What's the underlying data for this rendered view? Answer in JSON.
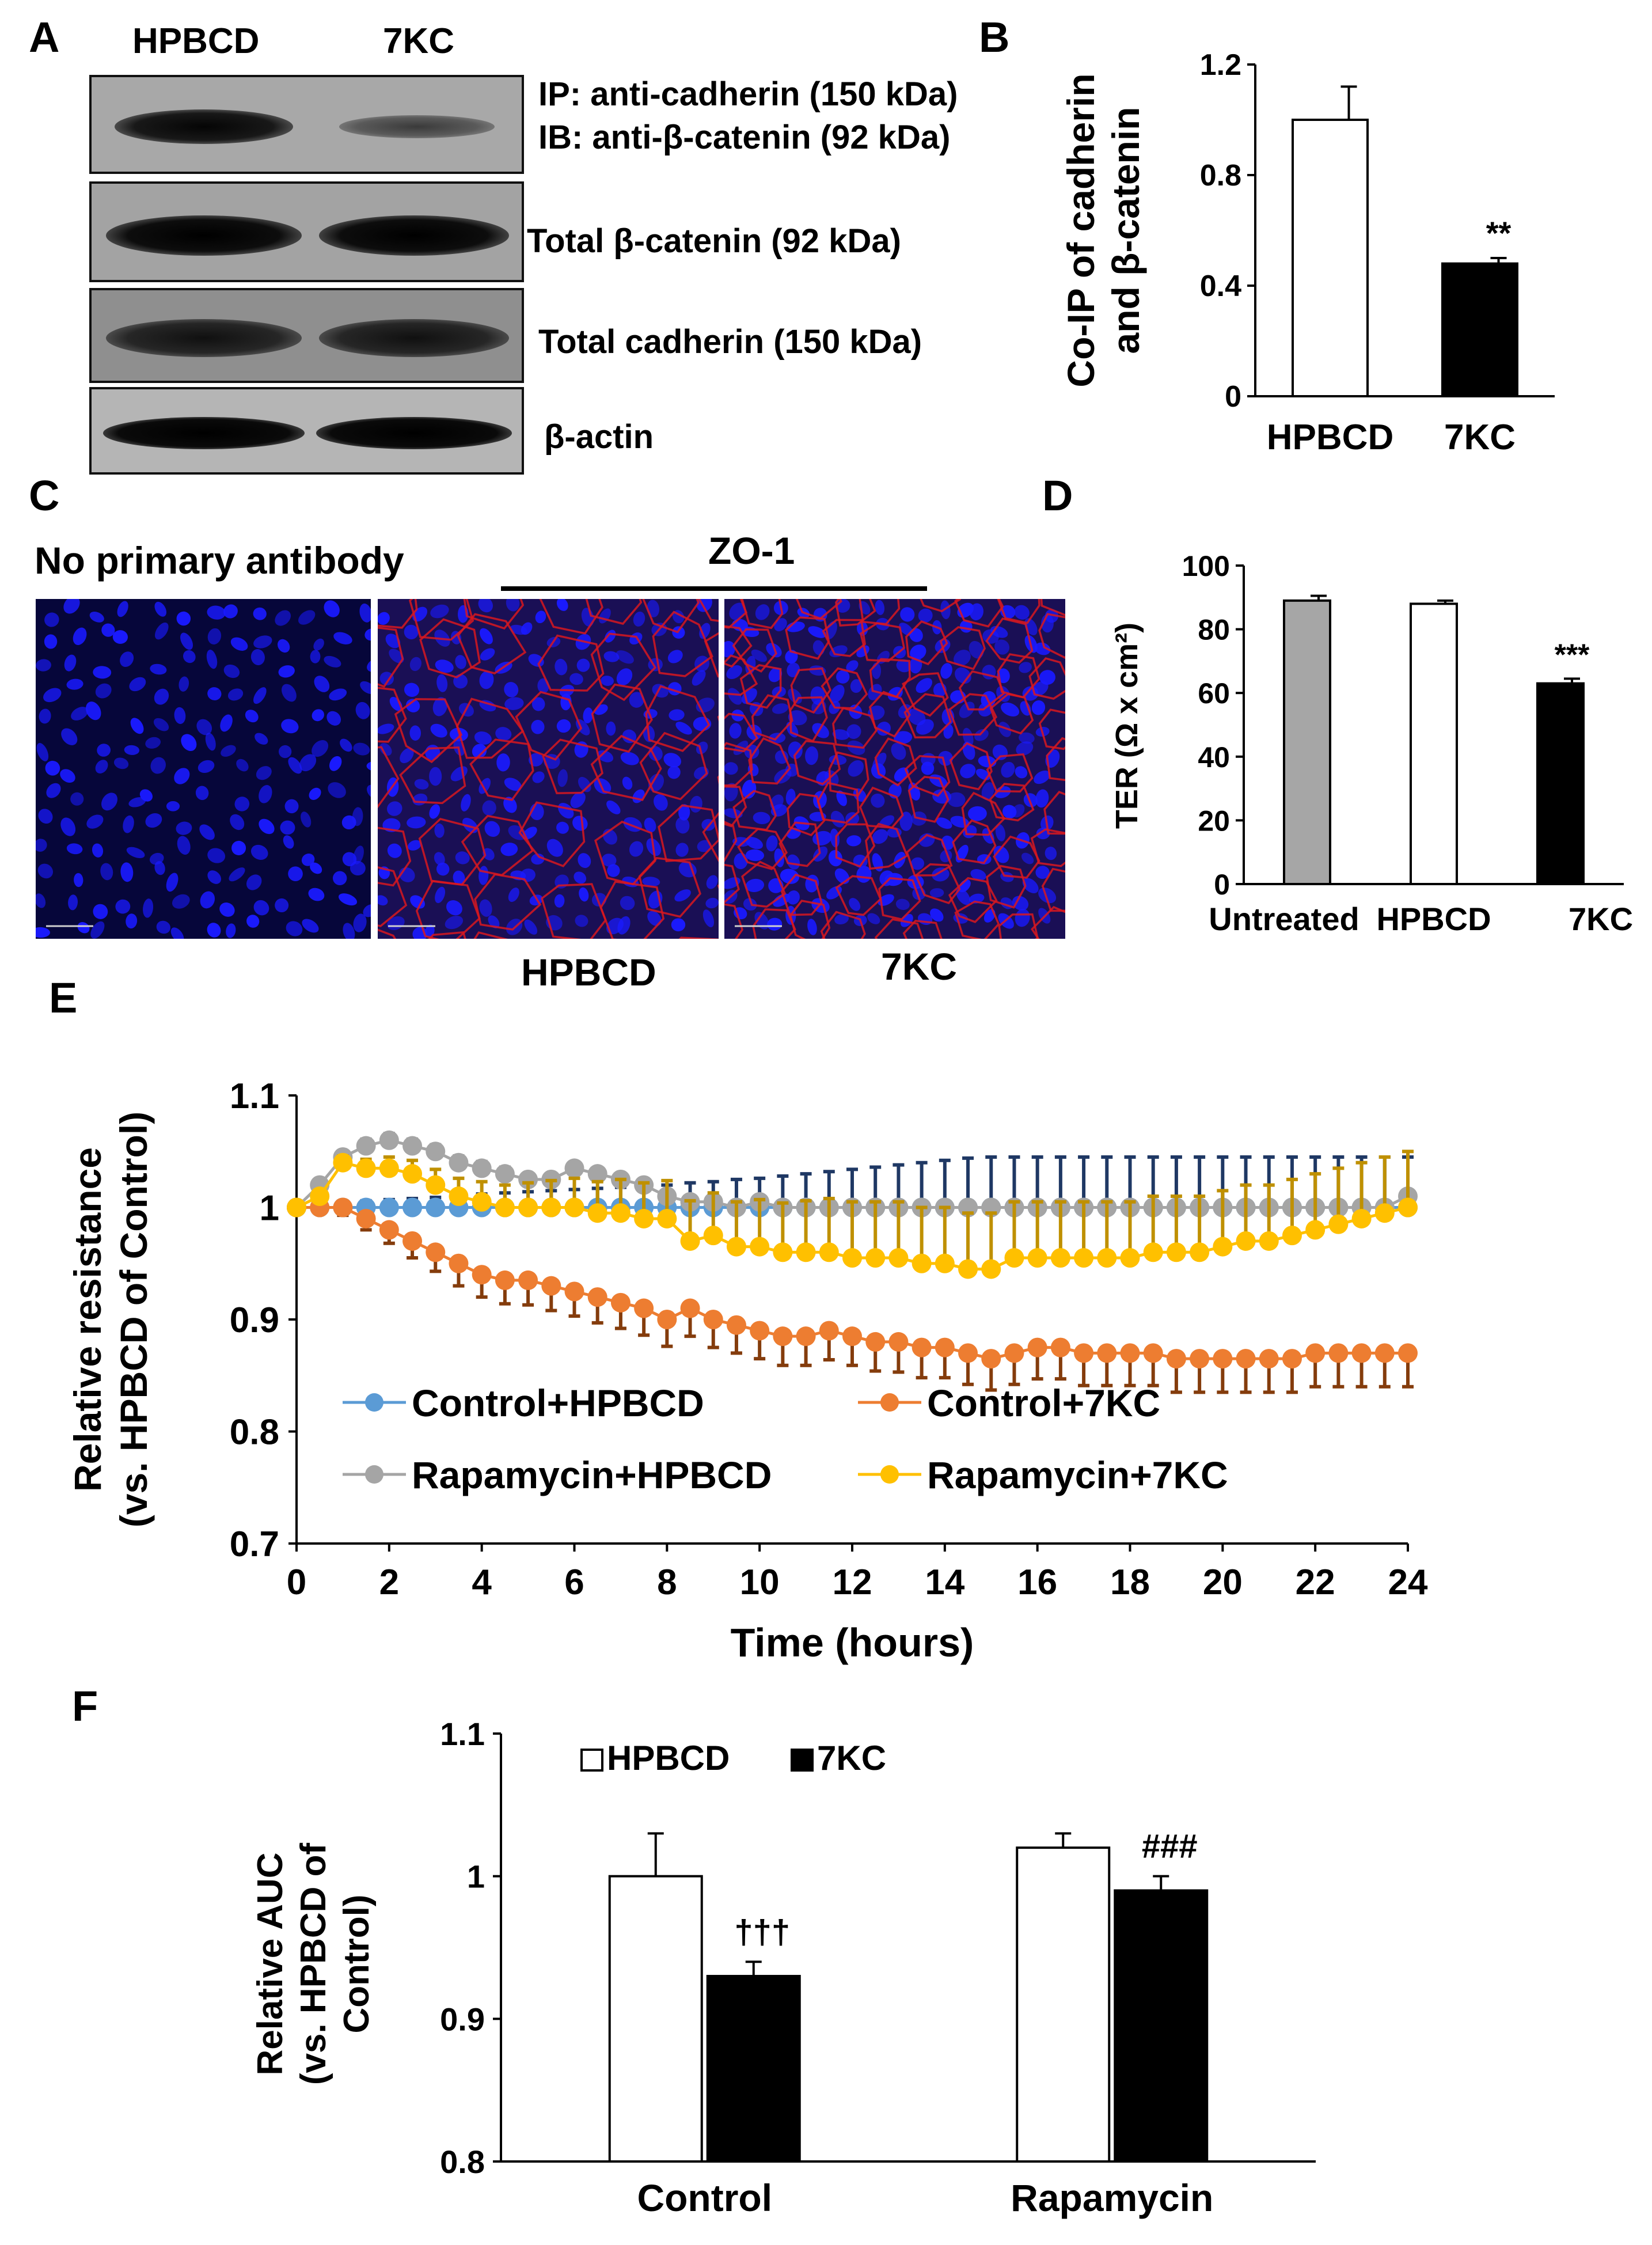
{
  "panels": {
    "A": "A",
    "B": "B",
    "C": "C",
    "D": "D",
    "E": "E",
    "F": "F"
  },
  "western_blot": {
    "lane_labels": [
      "HPBCD",
      "7KC"
    ],
    "rows": [
      {
        "label": "IP: anti-cadherin (150 kDa)",
        "label2": "IB: anti-β-catenin (92 kDa)"
      },
      {
        "label": "Total β-catenin (92 kDa)"
      },
      {
        "label": "Total cadherin (150 kDa)"
      },
      {
        "label": "β-actin"
      }
    ]
  },
  "microscopy": {
    "no_primary_label": "No primary antibody",
    "zo1_label": "ZO-1",
    "captions": [
      "HPBCD",
      "7KC"
    ],
    "colors": {
      "nuclei": "#1a1aff",
      "zo1": "#d81820",
      "background": "#06063a"
    }
  },
  "chart_data": [
    {
      "id": "B",
      "type": "bar",
      "categories": [
        "HPBCD",
        "7KC"
      ],
      "values": [
        1.0,
        0.48
      ],
      "errors": [
        0.12,
        0.02
      ],
      "fills": [
        "#ffffff",
        "#000000"
      ],
      "annotations": [
        "",
        "**"
      ],
      "ylabel_line1": "Co-IP of cadherin",
      "ylabel_line2": "and β-catenin",
      "ylim": [
        0,
        1.2
      ],
      "yticks": [
        0,
        0.4,
        0.8,
        1.2
      ],
      "ytick_labels": [
        "0",
        "0.4",
        "0.8",
        "1.2"
      ]
    },
    {
      "id": "D",
      "type": "bar",
      "categories": [
        "Untreated",
        "HPBCD",
        "7KC"
      ],
      "values": [
        89,
        88,
        63
      ],
      "errors": [
        1.5,
        1,
        1.5
      ],
      "fills": [
        "#a6a6a6",
        "#ffffff",
        "#000000"
      ],
      "annotations": [
        "",
        "",
        "***"
      ],
      "ylabel": "TER (Ω x cm²)",
      "ylim": [
        0,
        100
      ],
      "yticks": [
        0,
        20,
        40,
        60,
        80,
        100
      ],
      "ytick_labels": [
        "0",
        "20",
        "40",
        "60",
        "80",
        "100"
      ]
    },
    {
      "id": "E",
      "type": "line",
      "xlabel": "Time (hours)",
      "ylabel_line1": "Relative  resistance",
      "ylabel_line2": "(vs. HPBCD of Control)",
      "xlim": [
        0,
        24
      ],
      "ylim": [
        0.7,
        1.1
      ],
      "xticks": [
        0,
        2,
        4,
        6,
        8,
        10,
        12,
        14,
        16,
        18,
        20,
        22,
        24
      ],
      "xtick_labels": [
        "0",
        "2",
        "4",
        "6",
        "8",
        "10",
        "12",
        "14",
        "16",
        "18",
        "20",
        "22",
        "24"
      ],
      "yticks": [
        0.7,
        0.8,
        0.9,
        1,
        1.1
      ],
      "ytick_labels": [
        "0.7",
        "0.8",
        "0.9",
        "1",
        "1.1"
      ],
      "x": [
        0,
        0.5,
        1,
        1.5,
        2,
        2.5,
        3,
        3.5,
        4,
        4.5,
        5,
        5.5,
        6,
        6.5,
        7,
        7.5,
        8,
        8.5,
        9,
        9.5,
        10,
        10.5,
        11,
        11.5,
        12,
        12.5,
        13,
        13.5,
        14,
        14.5,
        15,
        15.5,
        16,
        16.5,
        17,
        17.5,
        18,
        18.5,
        19,
        19.5,
        20,
        20.5,
        21,
        21.5,
        22,
        22.5,
        23,
        23.5,
        24
      ],
      "series": [
        {
          "name": "Control+HPBCD",
          "color": "#5b9bd5",
          "err_color": "#1f3864",
          "values": [
            1,
            1,
            1,
            1,
            1,
            1,
            1,
            1,
            1,
            1,
            1,
            1,
            1,
            1,
            1,
            1,
            1,
            1,
            1,
            1,
            1,
            1,
            1,
            1,
            1,
            1,
            1,
            1,
            1,
            1,
            1,
            1,
            1,
            1,
            1,
            1,
            1,
            1,
            1,
            1,
            1,
            1,
            1,
            1,
            1,
            1,
            1,
            1,
            1
          ],
          "errors": [
            0,
            0.003,
            0.005,
            0.006,
            0.007,
            0.008,
            0.009,
            0.01,
            0.012,
            0.013,
            0.014,
            0.015,
            0.016,
            0.017,
            0.018,
            0.019,
            0.02,
            0.022,
            0.023,
            0.025,
            0.026,
            0.028,
            0.03,
            0.032,
            0.034,
            0.036,
            0.038,
            0.04,
            0.042,
            0.044,
            0.045,
            0.045,
            0.045,
            0.045,
            0.045,
            0.045,
            0.045,
            0.045,
            0.045,
            0.045,
            0.045,
            0.045,
            0.045,
            0.045,
            0.045,
            0.045,
            0.045,
            0.045,
            0.045
          ]
        },
        {
          "name": "Control+7KC",
          "color": "#ed7d31",
          "err_color": "#843c0c",
          "values": [
            1,
            1,
            1,
            0.99,
            0.98,
            0.97,
            0.96,
            0.95,
            0.94,
            0.935,
            0.935,
            0.93,
            0.925,
            0.92,
            0.915,
            0.91,
            0.9,
            0.91,
            0.9,
            0.895,
            0.89,
            0.885,
            0.885,
            0.89,
            0.885,
            0.88,
            0.88,
            0.875,
            0.875,
            0.87,
            0.865,
            0.87,
            0.875,
            0.875,
            0.87,
            0.87,
            0.87,
            0.87,
            0.865,
            0.865,
            0.865,
            0.865,
            0.865,
            0.865,
            0.87,
            0.87,
            0.87,
            0.87,
            0.87
          ],
          "errors": [
            0,
            0.005,
            0.007,
            0.01,
            0.012,
            0.015,
            0.017,
            0.02,
            0.02,
            0.021,
            0.022,
            0.022,
            0.022,
            0.023,
            0.023,
            0.024,
            0.024,
            0.025,
            0.025,
            0.025,
            0.025,
            0.026,
            0.026,
            0.026,
            0.026,
            0.026,
            0.027,
            0.027,
            0.027,
            0.028,
            0.028,
            0.028,
            0.028,
            0.028,
            0.029,
            0.029,
            0.029,
            0.029,
            0.03,
            0.03,
            0.03,
            0.03,
            0.03,
            0.03,
            0.03,
            0.03,
            0.03,
            0.03,
            0.03
          ]
        },
        {
          "name": "Rapamycin+HPBCD",
          "color": "#a5a5a5",
          "err_color": "#7f7f7f",
          "values": [
            1,
            1.02,
            1.045,
            1.055,
            1.06,
            1.055,
            1.05,
            1.04,
            1.035,
            1.03,
            1.025,
            1.025,
            1.035,
            1.03,
            1.025,
            1.02,
            1.01,
            1.005,
            1.005,
            1,
            1.005,
            1,
            1,
            1,
            1,
            1,
            1,
            1,
            1,
            1,
            1,
            1,
            1,
            1,
            1,
            1,
            1,
            1,
            1,
            1,
            1,
            1,
            1,
            1,
            1,
            1,
            1,
            1,
            1.01
          ],
          "errors": [
            0,
            0.004,
            0.005,
            0.006,
            0.006,
            0.006,
            0.006,
            0.006,
            0.006,
            0.006,
            0.005,
            0.005,
            0.005,
            0.005,
            0.005,
            0.005,
            0.005,
            0.005,
            0.005,
            0.005,
            0.005,
            0.005,
            0.005,
            0.005,
            0.005,
            0.005,
            0.005,
            0.005,
            0.005,
            0.005,
            0.005,
            0.005,
            0.005,
            0.005,
            0.005,
            0.005,
            0.005,
            0.005,
            0.005,
            0.005,
            0.005,
            0.005,
            0.005,
            0.005,
            0.005,
            0.005,
            0.005,
            0.005,
            0.005
          ]
        },
        {
          "name": "Rapamycin+7KC",
          "color": "#ffc000",
          "err_color": "#bf9000",
          "values": [
            1,
            1.01,
            1.04,
            1.035,
            1.035,
            1.03,
            1.02,
            1.01,
            1.005,
            1,
            1,
            1,
            1,
            0.995,
            0.995,
            0.99,
            0.99,
            0.97,
            0.975,
            0.965,
            0.965,
            0.96,
            0.96,
            0.96,
            0.955,
            0.955,
            0.955,
            0.95,
            0.95,
            0.945,
            0.945,
            0.955,
            0.955,
            0.955,
            0.955,
            0.955,
            0.955,
            0.96,
            0.96,
            0.96,
            0.965,
            0.97,
            0.97,
            0.975,
            0.98,
            0.985,
            0.99,
            0.995,
            1
          ],
          "errors": [
            0,
            0.005,
            0.006,
            0.008,
            0.01,
            0.012,
            0.014,
            0.016,
            0.018,
            0.02,
            0.022,
            0.024,
            0.026,
            0.028,
            0.03,
            0.032,
            0.034,
            0.036,
            0.038,
            0.04,
            0.042,
            0.044,
            0.046,
            0.048,
            0.05,
            0.05,
            0.05,
            0.05,
            0.05,
            0.05,
            0.05,
            0.05,
            0.05,
            0.05,
            0.05,
            0.05,
            0.05,
            0.05,
            0.05,
            0.05,
            0.05,
            0.05,
            0.05,
            0.05,
            0.05,
            0.05,
            0.05,
            0.05,
            0.05
          ]
        }
      ]
    },
    {
      "id": "F",
      "type": "bar",
      "categories": [
        "Control",
        "Rapamycin"
      ],
      "series": [
        {
          "name": "HPBCD",
          "fill": "#ffffff",
          "values": [
            1.0,
            1.02
          ],
          "errors": [
            0.03,
            0.01
          ],
          "annotations": [
            "",
            ""
          ]
        },
        {
          "name": "7KC",
          "fill": "#000000",
          "values": [
            0.93,
            0.99
          ],
          "errors": [
            0.01,
            0.01
          ],
          "annotations": [
            "†††",
            "###"
          ]
        }
      ],
      "ylabel_line1": "Relative AUC",
      "ylabel_line2": "(vs. HPBCD of",
      "ylabel_line3": "Control)",
      "ylim": [
        0.8,
        1.1
      ],
      "yticks": [
        0.8,
        0.9,
        1,
        1.1
      ],
      "ytick_labels": [
        "0.8",
        "0.9",
        "1",
        "1.1"
      ]
    }
  ]
}
